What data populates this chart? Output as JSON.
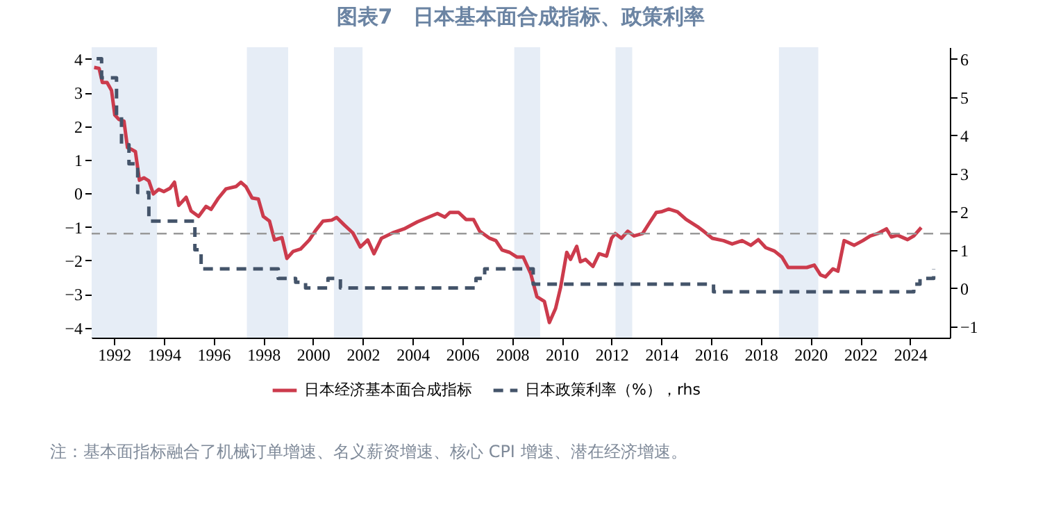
{
  "chart_data": {
    "type": "line",
    "title": "图表7　日本基本面合成指标、政策利率",
    "xlim": [
      1991.1,
      2025.6
    ],
    "xticks": [
      1992,
      1994,
      1996,
      1998,
      2000,
      2002,
      2004,
      2006,
      2008,
      2010,
      2012,
      2014,
      2016,
      2018,
      2020,
      2022,
      2024
    ],
    "ylim": [
      -4.3,
      4.35
    ],
    "yticks": [
      -4,
      -3,
      -2,
      -1,
      0,
      1,
      2,
      3,
      4
    ],
    "y2lim": [
      -1.3,
      6.3
    ],
    "y2ticks": [
      -1,
      0,
      1,
      2,
      3,
      4,
      5,
      6
    ],
    "grid": false,
    "legend": "bottom",
    "series": [
      {
        "name": "日本经济基本面合成指标",
        "color": "#cc3b4c",
        "line_style": "solid",
        "x": [
          1991.2,
          1991.4,
          1991.53,
          1991.72,
          1991.9,
          1992.03,
          1992.2,
          1992.4,
          1992.54,
          1992.72,
          1992.86,
          1993.02,
          1993.2,
          1993.4,
          1993.58,
          1993.8,
          1994.0,
          1994.25,
          1994.43,
          1994.6,
          1994.9,
          1995.1,
          1995.4,
          1995.7,
          1995.9,
          1996.2,
          1996.5,
          1996.9,
          1997.1,
          1997.3,
          1997.55,
          1997.8,
          1998.0,
          1998.25,
          1998.45,
          1998.75,
          1998.95,
          1999.2,
          1999.5,
          1999.85,
          2000.1,
          2000.4,
          2000.75,
          2000.95,
          2001.25,
          2001.6,
          2001.9,
          2002.2,
          2002.45,
          2002.75,
          2003.2,
          2003.66,
          2004.2,
          2004.65,
          2005.0,
          2005.3,
          2005.5,
          2005.85,
          2006.15,
          2006.45,
          2006.7,
          2007.1,
          2007.35,
          2007.6,
          2007.9,
          2008.2,
          2008.45,
          2008.75,
          2009.0,
          2009.3,
          2009.5,
          2009.75,
          2009.95,
          2010.2,
          2010.35,
          2010.6,
          2010.75,
          2010.95,
          2011.25,
          2011.5,
          2011.8,
          2012.0,
          2012.15,
          2012.4,
          2012.65,
          2012.9,
          2013.25,
          2013.55,
          2013.8,
          2014.0,
          2014.3,
          2014.65,
          2015.0,
          2015.45,
          2015.7,
          2016.05,
          2016.5,
          2016.85,
          2017.25,
          2017.6,
          2017.9,
          2018.2,
          2018.55,
          2018.85,
          2019.1,
          2019.4,
          2019.85,
          2020.15,
          2020.4,
          2020.6,
          2020.9,
          2021.1,
          2021.35,
          2021.75,
          2022.1,
          2022.4,
          2022.7,
          2023.05,
          2023.25,
          2023.5,
          2023.9,
          2024.15,
          2024.45
        ],
        "values": [
          3.75,
          3.72,
          3.3,
          3.3,
          3.06,
          2.33,
          2.2,
          2.15,
          1.36,
          1.3,
          1.24,
          0.39,
          0.46,
          0.37,
          -0.02,
          0.12,
          0.05,
          0.15,
          0.33,
          -0.36,
          -0.12,
          -0.53,
          -0.69,
          -0.39,
          -0.48,
          -0.14,
          0.13,
          0.2,
          0.33,
          0.2,
          -0.14,
          -0.17,
          -0.69,
          -0.83,
          -1.39,
          -1.32,
          -1.94,
          -1.73,
          -1.66,
          -1.39,
          -1.11,
          -0.83,
          -0.8,
          -0.72,
          -0.94,
          -1.18,
          -1.6,
          -1.39,
          -1.8,
          -1.34,
          -1.18,
          -1.06,
          -0.85,
          -0.71,
          -0.6,
          -0.71,
          -0.57,
          -0.57,
          -0.78,
          -0.78,
          -1.13,
          -1.34,
          -1.41,
          -1.69,
          -1.76,
          -1.9,
          -1.9,
          -2.39,
          -3.08,
          -3.22,
          -3.85,
          -3.43,
          -2.81,
          -1.76,
          -1.97,
          -1.58,
          -2.04,
          -1.97,
          -2.18,
          -1.8,
          -1.87,
          -1.34,
          -1.2,
          -1.34,
          -1.13,
          -1.27,
          -1.2,
          -0.85,
          -0.57,
          -0.55,
          -0.47,
          -0.55,
          -0.78,
          -0.99,
          -1.13,
          -1.34,
          -1.41,
          -1.51,
          -1.41,
          -1.55,
          -1.38,
          -1.62,
          -1.72,
          -1.9,
          -2.21,
          -2.21,
          -2.21,
          -2.14,
          -2.43,
          -2.49,
          -2.25,
          -2.32,
          -1.41,
          -1.55,
          -1.41,
          -1.27,
          -1.2,
          -1.06,
          -1.3,
          -1.25,
          -1.38,
          -1.27,
          -1.02
        ]
      },
      {
        "name": "日本政策利率（%），rhs",
        "type": "step",
        "axis": "y2",
        "color": "#44546a",
        "line_style": "dashed",
        "x": [
          1991.3,
          1991.5,
          1992.1,
          1992.3,
          1992.6,
          1992.95,
          1993.4,
          1995.25,
          1995.5,
          1998.6,
          1999.3,
          1999.7,
          2000.6,
          2001.1,
          2006.55,
          2006.9,
          2008.85,
          2016.1,
          2024.15,
          2024.4,
          2024.95
        ],
        "values": [
          6.0,
          5.5,
          4.5,
          3.75,
          3.25,
          2.5,
          1.75,
          1.0,
          0.5,
          0.25,
          0.15,
          0.0,
          0.25,
          0.0,
          0.25,
          0.5,
          0.1,
          -0.1,
          0.1,
          0.25,
          0.5
        ]
      }
    ],
    "bands": [
      {
        "axis": "x",
        "from": 1991.1,
        "to": 1993.73,
        "color": "#e6edf6"
      },
      {
        "axis": "x",
        "from": 1997.34,
        "to": 1999.0,
        "color": "#e6edf6"
      },
      {
        "axis": "x",
        "from": 2000.84,
        "to": 2001.99,
        "color": "#e6edf6"
      },
      {
        "axis": "x",
        "from": 2008.09,
        "to": 2009.13,
        "color": "#e6edf6"
      },
      {
        "axis": "x",
        "from": 2012.16,
        "to": 2012.83,
        "color": "#e6edf6"
      },
      {
        "axis": "x",
        "from": 2018.73,
        "to": 2020.31,
        "color": "#e6edf6"
      }
    ],
    "ref_lines": [
      {
        "axis": "y",
        "value": -1.2,
        "color": "#999999",
        "line_style": "dashed"
      }
    ],
    "annotations": [
      "注：基本面指标融合了机械订单增速、名义薪资增速、核心 CPI 增速、潜在经济增速。"
    ]
  }
}
